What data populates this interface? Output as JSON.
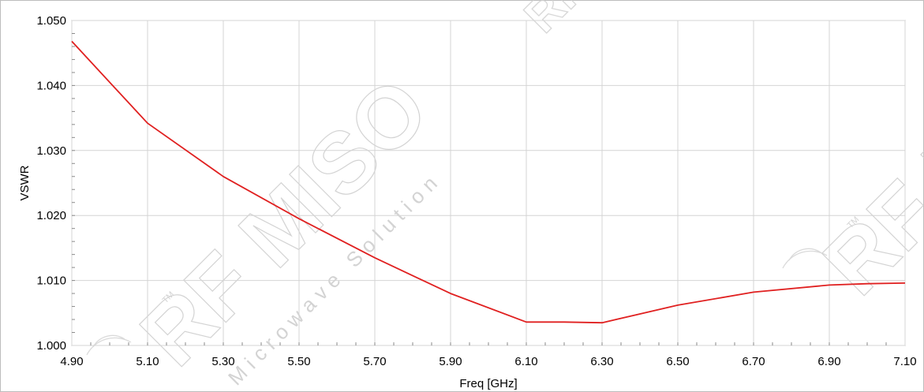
{
  "chart_data": {
    "type": "line",
    "xlabel": "Freq [GHz]",
    "ylabel": "VSWR",
    "xlim": [
      4.9,
      7.1
    ],
    "ylim": [
      1.0,
      1.05
    ],
    "x_ticks": [
      "4.90",
      "5.10",
      "5.30",
      "5.50",
      "5.70",
      "5.90",
      "6.10",
      "6.30",
      "6.50",
      "6.70",
      "6.90",
      "7.10"
    ],
    "y_ticks": [
      "1.000",
      "1.010",
      "1.020",
      "1.030",
      "1.040",
      "1.050"
    ],
    "grid": true,
    "series": [
      {
        "color": "#e02020",
        "x": [
          4.9,
          5.1,
          5.3,
          5.5,
          5.7,
          5.9,
          6.1,
          6.2,
          6.3,
          6.5,
          6.7,
          6.9,
          7.0,
          7.1
        ],
        "y": [
          1.0468,
          1.0342,
          1.026,
          1.0195,
          1.0135,
          1.008,
          1.0036,
          1.0036,
          1.0035,
          1.0062,
          1.0082,
          1.0093,
          1.0095,
          1.0096
        ]
      }
    ]
  },
  "watermark": {
    "brand": "RF MISO",
    "tagline": "Microwave Solution",
    "tm": "TM"
  }
}
